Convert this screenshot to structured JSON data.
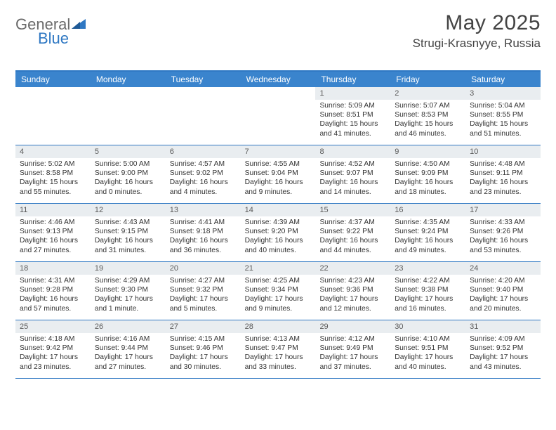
{
  "brand": {
    "part1": "General",
    "part2": "Blue"
  },
  "title": "May 2025",
  "location": "Strugi-Krasnyye, Russia",
  "colors": {
    "header_bg": "#3a84cd",
    "rule": "#2f78c3",
    "daynum_bg": "#e9edf0",
    "text": "#333333",
    "title_text": "#444444",
    "logo_gray": "#6a6a6a",
    "logo_blue": "#2f78c3"
  },
  "dayNames": [
    "Sunday",
    "Monday",
    "Tuesday",
    "Wednesday",
    "Thursday",
    "Friday",
    "Saturday"
  ],
  "weeks": [
    [
      null,
      null,
      null,
      null,
      {
        "n": "1",
        "sr": "Sunrise: 5:09 AM",
        "ss": "Sunset: 8:51 PM",
        "dl": "Daylight: 15 hours and 41 minutes."
      },
      {
        "n": "2",
        "sr": "Sunrise: 5:07 AM",
        "ss": "Sunset: 8:53 PM",
        "dl": "Daylight: 15 hours and 46 minutes."
      },
      {
        "n": "3",
        "sr": "Sunrise: 5:04 AM",
        "ss": "Sunset: 8:55 PM",
        "dl": "Daylight: 15 hours and 51 minutes."
      }
    ],
    [
      {
        "n": "4",
        "sr": "Sunrise: 5:02 AM",
        "ss": "Sunset: 8:58 PM",
        "dl": "Daylight: 15 hours and 55 minutes."
      },
      {
        "n": "5",
        "sr": "Sunrise: 5:00 AM",
        "ss": "Sunset: 9:00 PM",
        "dl": "Daylight: 16 hours and 0 minutes."
      },
      {
        "n": "6",
        "sr": "Sunrise: 4:57 AM",
        "ss": "Sunset: 9:02 PM",
        "dl": "Daylight: 16 hours and 4 minutes."
      },
      {
        "n": "7",
        "sr": "Sunrise: 4:55 AM",
        "ss": "Sunset: 9:04 PM",
        "dl": "Daylight: 16 hours and 9 minutes."
      },
      {
        "n": "8",
        "sr": "Sunrise: 4:52 AM",
        "ss": "Sunset: 9:07 PM",
        "dl": "Daylight: 16 hours and 14 minutes."
      },
      {
        "n": "9",
        "sr": "Sunrise: 4:50 AM",
        "ss": "Sunset: 9:09 PM",
        "dl": "Daylight: 16 hours and 18 minutes."
      },
      {
        "n": "10",
        "sr": "Sunrise: 4:48 AM",
        "ss": "Sunset: 9:11 PM",
        "dl": "Daylight: 16 hours and 23 minutes."
      }
    ],
    [
      {
        "n": "11",
        "sr": "Sunrise: 4:46 AM",
        "ss": "Sunset: 9:13 PM",
        "dl": "Daylight: 16 hours and 27 minutes."
      },
      {
        "n": "12",
        "sr": "Sunrise: 4:43 AM",
        "ss": "Sunset: 9:15 PM",
        "dl": "Daylight: 16 hours and 31 minutes."
      },
      {
        "n": "13",
        "sr": "Sunrise: 4:41 AM",
        "ss": "Sunset: 9:18 PM",
        "dl": "Daylight: 16 hours and 36 minutes."
      },
      {
        "n": "14",
        "sr": "Sunrise: 4:39 AM",
        "ss": "Sunset: 9:20 PM",
        "dl": "Daylight: 16 hours and 40 minutes."
      },
      {
        "n": "15",
        "sr": "Sunrise: 4:37 AM",
        "ss": "Sunset: 9:22 PM",
        "dl": "Daylight: 16 hours and 44 minutes."
      },
      {
        "n": "16",
        "sr": "Sunrise: 4:35 AM",
        "ss": "Sunset: 9:24 PM",
        "dl": "Daylight: 16 hours and 49 minutes."
      },
      {
        "n": "17",
        "sr": "Sunrise: 4:33 AM",
        "ss": "Sunset: 9:26 PM",
        "dl": "Daylight: 16 hours and 53 minutes."
      }
    ],
    [
      {
        "n": "18",
        "sr": "Sunrise: 4:31 AM",
        "ss": "Sunset: 9:28 PM",
        "dl": "Daylight: 16 hours and 57 minutes."
      },
      {
        "n": "19",
        "sr": "Sunrise: 4:29 AM",
        "ss": "Sunset: 9:30 PM",
        "dl": "Daylight: 17 hours and 1 minute."
      },
      {
        "n": "20",
        "sr": "Sunrise: 4:27 AM",
        "ss": "Sunset: 9:32 PM",
        "dl": "Daylight: 17 hours and 5 minutes."
      },
      {
        "n": "21",
        "sr": "Sunrise: 4:25 AM",
        "ss": "Sunset: 9:34 PM",
        "dl": "Daylight: 17 hours and 9 minutes."
      },
      {
        "n": "22",
        "sr": "Sunrise: 4:23 AM",
        "ss": "Sunset: 9:36 PM",
        "dl": "Daylight: 17 hours and 12 minutes."
      },
      {
        "n": "23",
        "sr": "Sunrise: 4:22 AM",
        "ss": "Sunset: 9:38 PM",
        "dl": "Daylight: 17 hours and 16 minutes."
      },
      {
        "n": "24",
        "sr": "Sunrise: 4:20 AM",
        "ss": "Sunset: 9:40 PM",
        "dl": "Daylight: 17 hours and 20 minutes."
      }
    ],
    [
      {
        "n": "25",
        "sr": "Sunrise: 4:18 AM",
        "ss": "Sunset: 9:42 PM",
        "dl": "Daylight: 17 hours and 23 minutes."
      },
      {
        "n": "26",
        "sr": "Sunrise: 4:16 AM",
        "ss": "Sunset: 9:44 PM",
        "dl": "Daylight: 17 hours and 27 minutes."
      },
      {
        "n": "27",
        "sr": "Sunrise: 4:15 AM",
        "ss": "Sunset: 9:46 PM",
        "dl": "Daylight: 17 hours and 30 minutes."
      },
      {
        "n": "28",
        "sr": "Sunrise: 4:13 AM",
        "ss": "Sunset: 9:47 PM",
        "dl": "Daylight: 17 hours and 33 minutes."
      },
      {
        "n": "29",
        "sr": "Sunrise: 4:12 AM",
        "ss": "Sunset: 9:49 PM",
        "dl": "Daylight: 17 hours and 37 minutes."
      },
      {
        "n": "30",
        "sr": "Sunrise: 4:10 AM",
        "ss": "Sunset: 9:51 PM",
        "dl": "Daylight: 17 hours and 40 minutes."
      },
      {
        "n": "31",
        "sr": "Sunrise: 4:09 AM",
        "ss": "Sunset: 9:52 PM",
        "dl": "Daylight: 17 hours and 43 minutes."
      }
    ]
  ]
}
